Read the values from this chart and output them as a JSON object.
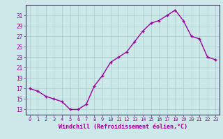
{
  "x": [
    0,
    1,
    2,
    3,
    4,
    5,
    6,
    7,
    8,
    9,
    10,
    11,
    12,
    13,
    14,
    15,
    16,
    17,
    18,
    19,
    20,
    21,
    22,
    23
  ],
  "y": [
    17,
    16.5,
    15.5,
    15,
    14.5,
    13,
    13,
    14,
    17.5,
    19.5,
    22,
    23,
    24,
    26,
    28,
    29.5,
    30,
    31,
    32,
    30,
    27,
    26.5,
    23,
    22.5
  ],
  "line_color": "#990099",
  "marker": "+",
  "bg_color": "#cce8e8",
  "grid_color": "#aacccc",
  "xlabel": "Windchill (Refroidissement éolien,°C)",
  "xlabel_color": "#990099",
  "ytick_labels": [
    "13",
    "15",
    "17",
    "19",
    "21",
    "23",
    "25",
    "27",
    "29",
    "31"
  ],
  "ytick_values": [
    13,
    15,
    17,
    19,
    21,
    23,
    25,
    27,
    29,
    31
  ],
  "ylim": [
    12,
    33
  ],
  "xlim": [
    -0.5,
    23.5
  ],
  "xtick_labels": [
    "0",
    "1",
    "2",
    "3",
    "4",
    "5",
    "6",
    "7",
    "8",
    "9",
    "10",
    "11",
    "12",
    "13",
    "14",
    "15",
    "16",
    "17",
    "18",
    "19",
    "20",
    "21",
    "22",
    "23"
  ],
  "axis_color": "#990099",
  "spine_color": "#990099",
  "tick_fontsize": 5.0,
  "xlabel_fontsize": 6.0
}
